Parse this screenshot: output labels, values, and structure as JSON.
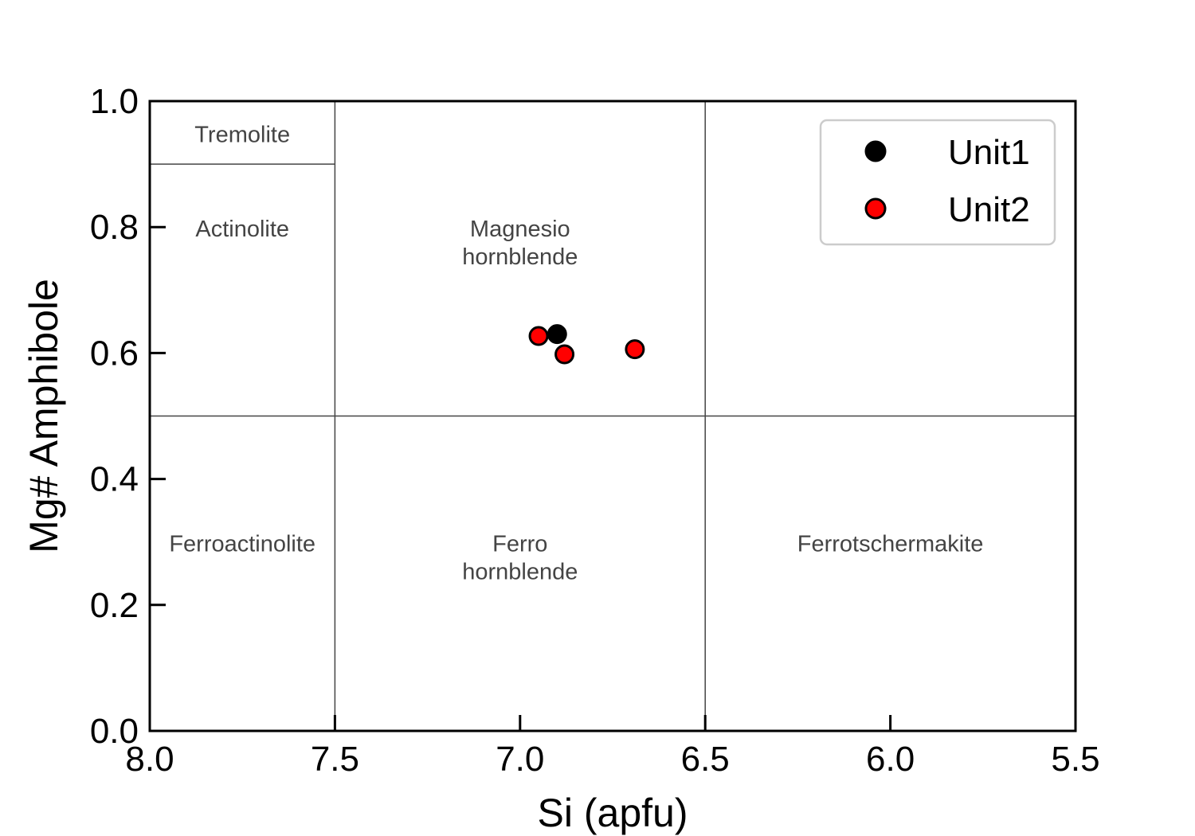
{
  "chart_data": {
    "type": "scatter",
    "title": "",
    "xlabel": "Si (apfu)",
    "ylabel": "Mg# Amphibole",
    "xlim": [
      8.0,
      5.5
    ],
    "ylim": [
      0.0,
      1.0
    ],
    "x_inverted": true,
    "grid": false,
    "legend_position": "top-right",
    "x_ticks": [
      "8.0",
      "7.5",
      "7.0",
      "6.5",
      "6.0",
      "5.5"
    ],
    "y_ticks": [
      "0.0",
      "0.2",
      "0.4",
      "0.6",
      "0.8",
      "1.0"
    ],
    "field_boundaries": {
      "vertical": [
        {
          "x": 7.5,
          "y0": 0.0,
          "y1": 1.0
        },
        {
          "x": 6.5,
          "y0": 0.0,
          "y1": 1.0
        }
      ],
      "horizontal": [
        {
          "y": 0.5,
          "x0": 8.0,
          "x1": 5.5
        },
        {
          "y": 0.9,
          "x0": 8.0,
          "x1": 7.5
        }
      ]
    },
    "regions": [
      {
        "label": "Tremolite",
        "x": 7.75,
        "y": 0.935
      },
      {
        "label": "Actinolite",
        "x": 7.75,
        "y": 0.785
      },
      {
        "label": "Magnesio\nhornblende",
        "x": 7.0,
        "y": 0.785
      },
      {
        "label": "Ferroactinolite",
        "x": 7.75,
        "y": 0.285
      },
      {
        "label": "Ferro\nhornblende",
        "x": 7.0,
        "y": 0.285
      },
      {
        "label": "Ferrotschermakite",
        "x": 6.0,
        "y": 0.285
      }
    ],
    "series": [
      {
        "name": "Unit1",
        "color": "#000000",
        "x": [
          6.9
        ],
        "y": [
          0.63
        ]
      },
      {
        "name": "Unit2",
        "color": "#ff0000",
        "x": [
          6.95,
          6.88,
          6.69
        ],
        "y": [
          0.627,
          0.598,
          0.606
        ]
      }
    ]
  }
}
